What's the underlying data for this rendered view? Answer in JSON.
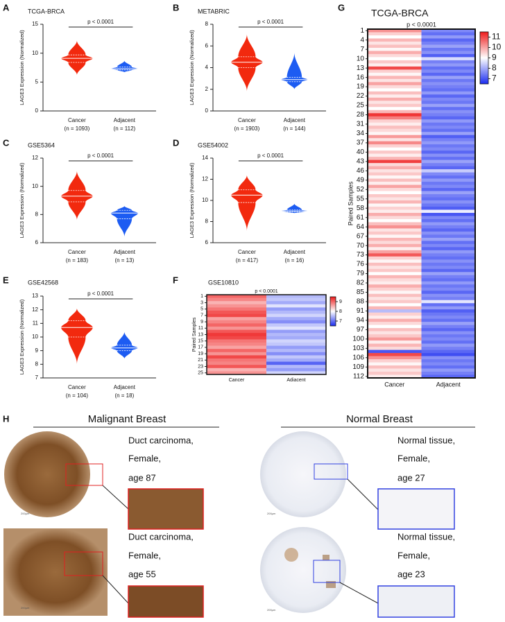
{
  "chart_data": [
    {
      "type": "violin",
      "panel_label": "A",
      "title": "TCGA-BRCA",
      "ylabel": "LAGE3 Expression (Normalized)",
      "annotation": "p < 0.0001",
      "ylim": [
        0,
        15
      ],
      "yticks": [
        0,
        5,
        10,
        15
      ],
      "series": [
        {
          "name": "Cancer",
          "n_label": "(n = 1093)",
          "color": "#f2290e",
          "min": 6.2,
          "q1": 8.4,
          "median": 9.1,
          "q3": 9.7,
          "max": 12.2
        },
        {
          "name": "Adjacent",
          "n_label": "(n = 112)",
          "color": "#1d5cf2",
          "min": 6.7,
          "q1": 7.1,
          "median": 7.3,
          "q3": 7.6,
          "max": 8.7
        }
      ]
    },
    {
      "type": "violin",
      "panel_label": "B",
      "title": "METABRIC",
      "ylabel": "LAGE3 Expression (Normalized)",
      "annotation": "p < 0.0001",
      "ylim": [
        0,
        8
      ],
      "yticks": [
        0,
        2,
        4,
        6,
        8
      ],
      "series": [
        {
          "name": "Cancer",
          "n_label": "(n = 1903)",
          "color": "#f2290e",
          "min": 1.8,
          "q1": 4.0,
          "median": 4.5,
          "q3": 5.0,
          "max": 7.1
        },
        {
          "name": "Adjacent",
          "n_label": "(n = 144)",
          "color": "#1d5cf2",
          "min": 2.0,
          "q1": 2.7,
          "median": 2.9,
          "q3": 3.1,
          "max": 5.4
        }
      ]
    },
    {
      "type": "violin",
      "panel_label": "C",
      "title": "GSE5364",
      "ylabel": "LAGE3 Expression (Normalized)",
      "annotation": "p < 0.0001",
      "ylim": [
        6,
        12
      ],
      "yticks": [
        6,
        8,
        10,
        12
      ],
      "series": [
        {
          "name": "Cancer",
          "n_label": "(n = 183)",
          "color": "#f2290e",
          "min": 7.6,
          "q1": 8.9,
          "median": 9.3,
          "q3": 9.7,
          "max": 11.1
        },
        {
          "name": "Adjacent",
          "n_label": "(n = 13)",
          "color": "#1d5cf2",
          "min": 6.4,
          "q1": 7.7,
          "median": 8.1,
          "q3": 8.3,
          "max": 8.6
        }
      ]
    },
    {
      "type": "violin",
      "panel_label": "D",
      "title": "GSE54002",
      "ylabel": "LAGE3 Expression (Normalized)",
      "annotation": "p < 0.0001",
      "ylim": [
        6,
        14
      ],
      "yticks": [
        6,
        8,
        10,
        12,
        14
      ],
      "series": [
        {
          "name": "Cancer",
          "n_label": "(n = 417)",
          "color": "#f2290e",
          "min": 7.1,
          "q1": 9.8,
          "median": 10.5,
          "q3": 11.0,
          "max": 12.4
        },
        {
          "name": "Adjacent",
          "n_label": "(n = 16)",
          "color": "#1d5cf2",
          "min": 8.8,
          "q1": 8.9,
          "median": 9.0,
          "q3": 9.1,
          "max": 9.7
        }
      ]
    },
    {
      "type": "violin",
      "panel_label": "E",
      "title": "GSE42568",
      "ylabel": "LAGE3 Expression (Normalized)",
      "annotation": "p < 0.0001",
      "ylim": [
        7,
        13
      ],
      "yticks": [
        7,
        8,
        9,
        10,
        11,
        12,
        13
      ],
      "series": [
        {
          "name": "Cancer",
          "n_label": "(n = 104)",
          "color": "#f2290e",
          "min": 8.0,
          "q1": 10.0,
          "median": 10.7,
          "q3": 11.2,
          "max": 12.1
        },
        {
          "name": "Adjacent",
          "n_label": "(n = 18)",
          "color": "#1d5cf2",
          "min": 8.4,
          "q1": 9.0,
          "median": 9.2,
          "q3": 9.4,
          "max": 10.4
        }
      ]
    },
    {
      "type": "heatmap",
      "panel_label": "F",
      "title": "GSE10810",
      "ylabel": "Paired Samples",
      "annotation": "p < 0.0001",
      "yticks": [
        1,
        3,
        5,
        7,
        9,
        11,
        13,
        15,
        17,
        19,
        21,
        23,
        25
      ],
      "colorbar": {
        "lim": [
          6.5,
          9.5
        ],
        "ticks": [
          7,
          8,
          9
        ],
        "colors": [
          "#1a2cf0",
          "#ffffff",
          "#ee1a1a"
        ]
      },
      "series": [
        {
          "name": "Cancer",
          "values": [
            9.0,
            8.8,
            8.5,
            8.7,
            8.9,
            9.1,
            9.2,
            8.6,
            8.8,
            9.0,
            8.7,
            9.1,
            9.3,
            9.2,
            8.9,
            8.8,
            8.6,
            9.0,
            8.7,
            9.2,
            8.9,
            8.8,
            9.1,
            8.5,
            8.7
          ]
        },
        {
          "name": "Adiacent",
          "values": [
            7.5,
            7.6,
            7.4,
            7.8,
            7.3,
            7.5,
            7.7,
            7.4,
            7.2,
            7.6,
            7.8,
            7.3,
            7.5,
            7.4,
            7.7,
            7.6,
            7.3,
            7.5,
            7.2,
            7.6,
            7.4,
            6.9,
            7.5,
            7.3,
            7.7
          ]
        }
      ]
    },
    {
      "type": "heatmap",
      "panel_label": "G",
      "title": "TCGA-BRCA",
      "ylabel": "Paired Samples",
      "annotation": "p < 0.0001",
      "yticks": [
        1,
        4,
        7,
        10,
        13,
        16,
        19,
        22,
        25,
        28,
        31,
        34,
        37,
        40,
        43,
        46,
        49,
        52,
        55,
        58,
        61,
        64,
        67,
        70,
        73,
        76,
        79,
        82,
        85,
        88,
        91,
        94,
        97,
        100,
        103,
        106,
        109,
        112
      ],
      "colorbar": {
        "lim": [
          6.5,
          11.5
        ],
        "ticks": [
          7,
          8,
          9,
          10,
          11
        ],
        "colors": [
          "#1a2cf0",
          "#ffffff",
          "#ee1a1a"
        ]
      },
      "series": [
        {
          "name": "Cancer",
          "values": [
            10.2,
            9.5,
            9.0,
            9.8,
            9.3,
            9.7,
            9.1,
            9.9,
            9.4,
            9.0,
            9.6,
            9.2,
            11.0,
            9.5,
            9.1,
            9.8,
            9.3,
            10.0,
            9.4,
            9.0,
            9.7,
            9.2,
            9.9,
            9.3,
            9.6,
            9.0,
            9.8,
            11.2,
            10.4,
            9.5,
            9.2,
            9.7,
            9.4,
            9.1,
            10.1,
            9.3,
            10.3,
            9.5,
            9.0,
            9.6,
            9.2,
            9.8,
            11.1,
            9.4,
            9.9,
            9.3,
            9.6,
            9.1,
            9.7,
            9.2,
            10.0,
            9.4,
            9.0,
            9.6,
            9.3,
            9.8,
            9.1,
            9.5,
            9.2,
            9.9,
            9.4,
            9.0,
            9.7,
            10.2,
            9.3,
            9.6,
            9.1,
            9.8,
            9.4,
            9.9,
            9.2,
            10.0,
            10.8,
            9.5,
            9.1,
            9.7,
            9.3,
            9.6,
            9.0,
            9.8,
            9.4,
            9.2,
            9.9,
            9.5,
            9.1,
            9.7,
            9.3,
            9.6,
            9.0,
            9.8,
            8.2,
            9.5,
            9.2,
            9.9,
            9.4,
            9.0,
            9.7,
            9.3,
            9.6,
            10.1,
            9.2,
            9.8,
            9.4,
            7.0,
            11.0,
            10.2,
            9.5,
            9.1,
            9.7,
            9.3,
            9.6,
            9.2
          ]
        },
        {
          "name": "Adjacent",
          "values": [
            7.6,
            7.3,
            7.8,
            7.2,
            7.5,
            7.9,
            7.4,
            7.7,
            7.1,
            8.6,
            7.5,
            7.8,
            7.3,
            7.6,
            7.2,
            7.9,
            7.4,
            7.7,
            7.5,
            7.3,
            7.8,
            7.2,
            7.6,
            7.4,
            7.9,
            7.3,
            7.7,
            7.5,
            7.2,
            7.8,
            7.4,
            7.6,
            7.3,
            7.9,
            7.1,
            7.5,
            7.8,
            7.4,
            7.6,
            7.2,
            7.7,
            7.3,
            7.9,
            7.5,
            7.2,
            8.4,
            7.6,
            7.3,
            7.8,
            7.4,
            7.6,
            7.2,
            7.9,
            7.5,
            7.3,
            7.7,
            7.4,
            7.1,
            8.8,
            7.0,
            7.6,
            7.3,
            7.8,
            7.5,
            7.2,
            7.7,
            7.4,
            7.9,
            7.3,
            7.6,
            7.2,
            7.8,
            7.5,
            7.3,
            7.7,
            7.4,
            7.6,
            7.2,
            7.9,
            7.5,
            7.3,
            7.8,
            7.4,
            7.6,
            7.2,
            7.7,
            7.5,
            8.7,
            7.3,
            7.8,
            7.1,
            7.4,
            7.6,
            7.3,
            7.9,
            7.5,
            7.2,
            7.7,
            7.4,
            7.6,
            7.3,
            7.8,
            7.5,
            7.2,
            6.9,
            7.7,
            7.4,
            7.6,
            7.3,
            7.8,
            7.5,
            7.2
          ]
        }
      ]
    }
  ],
  "panel_h": {
    "label": "H",
    "groups": [
      {
        "title": "Malignant Breast",
        "samples": [
          {
            "caption": [
              "Duct carcinoma,",
              "Female,",
              "age 87"
            ],
            "scale": "200µm"
          },
          {
            "caption": [
              "Duct carcinoma,",
              "Female,",
              "age 55"
            ],
            "scale": "200µm"
          }
        ]
      },
      {
        "title": "Normal Breast",
        "samples": [
          {
            "caption": [
              "Normal tissue,",
              "Female,",
              "age 27"
            ],
            "scale": "200µm"
          },
          {
            "caption": [
              "Normal tissue,",
              "Female,",
              "age 23"
            ],
            "scale": "200µm"
          }
        ]
      }
    ]
  }
}
